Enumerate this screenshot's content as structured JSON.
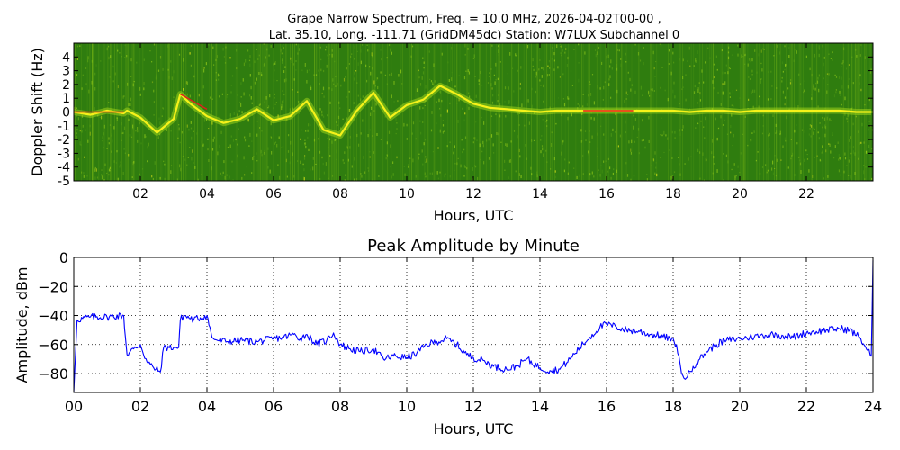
{
  "figure": {
    "title_line1": "Grape Narrow Spectrum, Freq. = 10.0 MHz, 2026-04-02T00-00 ,",
    "title_line2": "Lat.  35.10, Long. -111.71 (GridDM45dc) Station: W7LUX Subchannel 0"
  },
  "chart_data": [
    {
      "type": "heatmap",
      "title": "",
      "xlabel": "Hours, UTC",
      "ylabel": "Doppler Shift (Hz)",
      "xlim": [
        0,
        24
      ],
      "ylim": [
        -5,
        5
      ],
      "xticks": [
        2,
        4,
        6,
        8,
        10,
        12,
        14,
        16,
        18,
        20,
        22
      ],
      "xtick_labels": [
        "02",
        "04",
        "06",
        "08",
        "10",
        "12",
        "14",
        "16",
        "18",
        "20",
        "22"
      ],
      "yticks": [
        4,
        3,
        2,
        1,
        0,
        -1,
        -2,
        -3,
        -4,
        -5
      ],
      "ytick_labels": [
        "4",
        "3",
        "2",
        "1",
        "0",
        "-1",
        "-2",
        "-3",
        "-4",
        "-5"
      ],
      "grid": false,
      "colormap": [
        "#2f7d0f",
        "#9bd21a",
        "#f6f21a",
        "#e01d1d"
      ],
      "background_color": "#2f7d0f",
      "trace_color": "#f6f21a",
      "peak_color": "#e01d1d",
      "ridge": {
        "x": [
          0,
          0.5,
          1,
          1.5,
          1.6,
          2,
          2.5,
          3,
          3.2,
          3.5,
          4,
          4.5,
          5,
          5.5,
          6,
          6.5,
          7,
          7.5,
          8,
          8.5,
          9,
          9.5,
          10,
          10.5,
          11,
          11.5,
          12,
          12.5,
          13,
          13.5,
          14,
          14.5,
          15,
          15.5,
          16,
          16.5,
          17,
          17.5,
          18,
          18.5,
          19,
          19.5,
          20,
          20.5,
          21,
          21.5,
          22,
          22.5,
          23,
          23.5,
          23.95
        ],
        "y": [
          0,
          -0.2,
          0.1,
          -0.1,
          0.1,
          -0.4,
          -1.5,
          -0.5,
          1.3,
          0.6,
          -0.3,
          -0.8,
          -0.5,
          0.2,
          -0.6,
          -0.3,
          0.8,
          -1.3,
          -1.7,
          0.1,
          1.4,
          -0.4,
          0.5,
          0.9,
          1.9,
          1.3,
          0.6,
          0.3,
          0.2,
          0.1,
          0,
          0.1,
          0.1,
          0.1,
          0.1,
          0.1,
          0.1,
          0.1,
          0.1,
          0,
          0.1,
          0.1,
          0,
          0.1,
          0.1,
          0.1,
          0.1,
          0.1,
          0.1,
          0,
          0
        ]
      },
      "peak_segments": [
        {
          "x": [
            0,
            1.5
          ],
          "y": [
            0,
            0
          ]
        },
        {
          "x": [
            3.2,
            4.0
          ],
          "y": [
            1.3,
            0.2
          ]
        },
        {
          "x": [
            15.3,
            16.8
          ],
          "y": [
            0.1,
            0.1
          ]
        }
      ]
    },
    {
      "type": "line",
      "title": "Peak Amplitude by Minute",
      "xlabel": "Hours, UTC",
      "ylabel": "Amplitude, dBm",
      "xlim": [
        0,
        24
      ],
      "ylim": [
        -93,
        0
      ],
      "xticks": [
        0,
        2,
        4,
        6,
        8,
        10,
        12,
        14,
        16,
        18,
        20,
        22,
        24
      ],
      "xtick_labels": [
        "00",
        "02",
        "04",
        "06",
        "08",
        "10",
        "12",
        "14",
        "16",
        "18",
        "20",
        "22",
        "24"
      ],
      "yticks": [
        0,
        -20,
        -40,
        -60,
        -80
      ],
      "ytick_labels": [
        "0",
        "−20",
        "−40",
        "−60",
        "−80"
      ],
      "grid": true,
      "series": [
        {
          "color": "#0000ff",
          "x": [
            0,
            0.1,
            0.5,
            1.0,
            1.5,
            1.55,
            1.6,
            1.8,
            2.0,
            2.2,
            2.4,
            2.6,
            2.7,
            3.0,
            3.15,
            3.2,
            3.3,
            3.6,
            4.0,
            4.15,
            4.3,
            4.6,
            5.0,
            5.5,
            6.0,
            6.3,
            6.6,
            6.8,
            7.0,
            7.3,
            7.6,
            7.8,
            8.0,
            8.3,
            8.6,
            9.0,
            9.3,
            9.6,
            10.0,
            10.3,
            10.6,
            10.9,
            11.2,
            11.5,
            11.8,
            12.0,
            12.3,
            12.6,
            13.0,
            13.3,
            13.6,
            14.0,
            14.3,
            14.6,
            14.9,
            15.2,
            15.5,
            15.8,
            16.0,
            16.3,
            16.6,
            17.0,
            17.3,
            17.6,
            17.9,
            18.1,
            18.25,
            18.4,
            18.6,
            18.8,
            19.0,
            19.3,
            19.6,
            20.0,
            20.3,
            20.6,
            21.0,
            21.3,
            21.6,
            22.0,
            22.3,
            22.6,
            23.0,
            23.3,
            23.6,
            23.95,
            24.0
          ],
          "y": [
            -93,
            -43,
            -41,
            -41,
            -40,
            -55,
            -67,
            -63,
            -60,
            -72,
            -76,
            -79,
            -62,
            -62,
            -62,
            -43,
            -40,
            -43,
            -40,
            -55,
            -57,
            -58,
            -57,
            -58,
            -56,
            -55,
            -53,
            -56,
            -53,
            -60,
            -57,
            -52,
            -60,
            -63,
            -65,
            -63,
            -70,
            -68,
            -69,
            -66,
            -60,
            -58,
            -56,
            -60,
            -67,
            -69,
            -71,
            -75,
            -77,
            -75,
            -70,
            -76,
            -78,
            -77,
            -70,
            -62,
            -55,
            -48,
            -46,
            -48,
            -50,
            -51,
            -53,
            -54,
            -56,
            -60,
            -80,
            -83,
            -75,
            -70,
            -65,
            -60,
            -57,
            -56,
            -55,
            -54,
            -53,
            -54,
            -55,
            -52,
            -51,
            -50,
            -49,
            -50,
            -55,
            -68,
            -2
          ]
        }
      ]
    }
  ]
}
